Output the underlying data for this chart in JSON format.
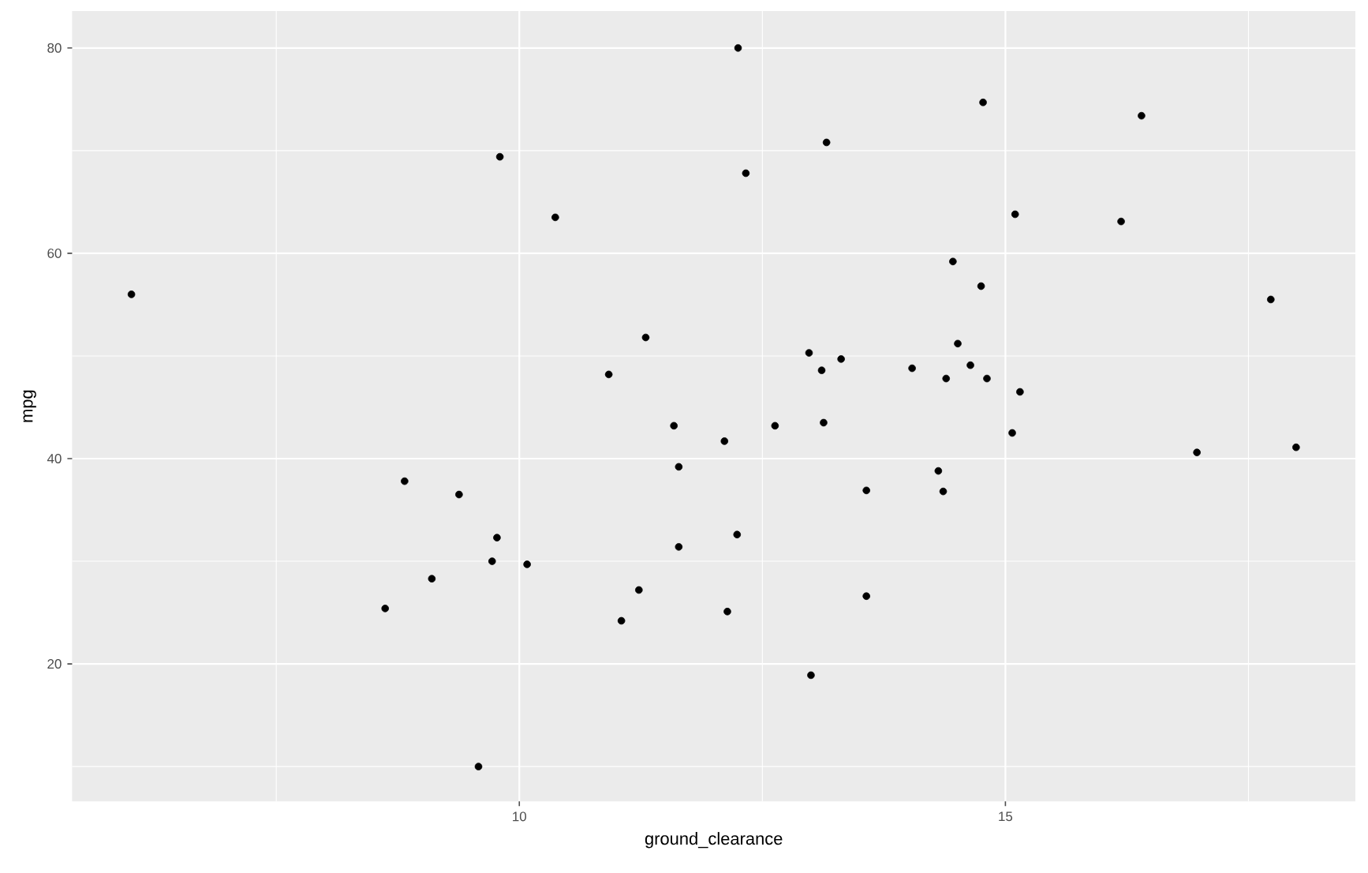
{
  "chart_data": {
    "type": "scatter",
    "xlabel": "ground_clearance",
    "ylabel": "mpg",
    "xlim": [
      5.4,
      18.6
    ],
    "ylim": [
      6.6,
      83.6
    ],
    "xticks": [
      10,
      15
    ],
    "yticks": [
      20,
      40,
      60,
      80
    ],
    "grid": true,
    "marker": "circle",
    "series": [
      {
        "color": "#000000",
        "x": [
          6.01,
          9.8,
          10.37,
          11.3,
          10.92,
          11.59,
          12.25,
          14.77,
          16.4,
          13.16,
          12.33,
          15.1,
          16.19,
          14.46,
          14.75,
          17.73,
          14.51,
          12.98,
          13.31,
          13.11,
          14.04,
          14.64,
          14.39,
          14.81,
          15.15,
          12.63,
          13.13,
          15.07,
          12.11,
          8.82,
          9.38,
          9.77,
          9.72,
          10.08,
          9.1,
          8.62,
          9.58,
          11.64,
          11.64,
          11.23,
          11.05,
          16.97,
          17.99,
          14.31,
          13.57,
          14.36,
          12.24,
          13.57,
          12.14,
          13.0
        ],
        "values": [
          56.0,
          69.4,
          63.5,
          51.8,
          48.2,
          43.2,
          80.0,
          74.7,
          73.4,
          70.8,
          67.8,
          63.8,
          63.1,
          59.2,
          56.8,
          55.5,
          51.2,
          50.3,
          49.7,
          48.6,
          48.8,
          49.1,
          47.8,
          47.8,
          46.5,
          43.2,
          43.5,
          42.5,
          41.7,
          37.8,
          36.5,
          32.3,
          30.0,
          29.7,
          28.3,
          25.4,
          10.0,
          39.2,
          31.4,
          27.2,
          24.2,
          40.6,
          41.1,
          38.8,
          36.9,
          36.8,
          32.6,
          26.6,
          25.1,
          18.9
        ]
      }
    ]
  }
}
